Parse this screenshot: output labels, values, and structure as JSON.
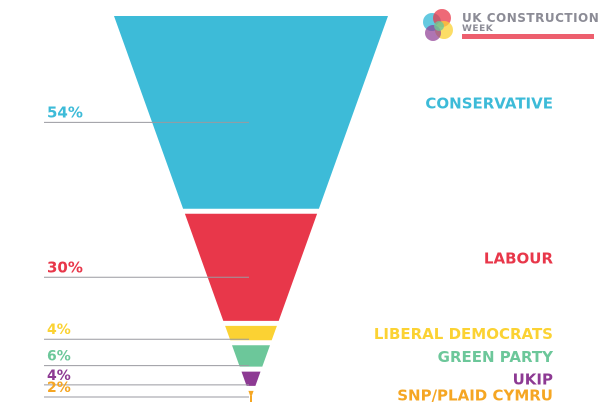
{
  "logo": {
    "line1": "UK CONSTRUCTION",
    "line2": "WEEK"
  },
  "chart_data": {
    "type": "funnel",
    "title": "",
    "series": [
      {
        "name": "CONSERVATIVE",
        "value": 54,
        "label": "54%",
        "color": "#3dbbd8"
      },
      {
        "name": "LABOUR",
        "value": 30,
        "label": "30%",
        "color": "#e8374a"
      },
      {
        "name": "LIBERAL DEMOCRATS",
        "value": 4,
        "label": "4%",
        "color": "#fbd233"
      },
      {
        "name": "GREEN PARTY",
        "value": 6,
        "label": "6%",
        "color": "#6cc79a"
      },
      {
        "name": "UKIP",
        "value": 4,
        "label": "4%",
        "color": "#8d3a93"
      },
      {
        "name": "SNP/PLAID CYMRU",
        "value": 2,
        "label": "2%",
        "color": "#f5a623"
      }
    ]
  }
}
